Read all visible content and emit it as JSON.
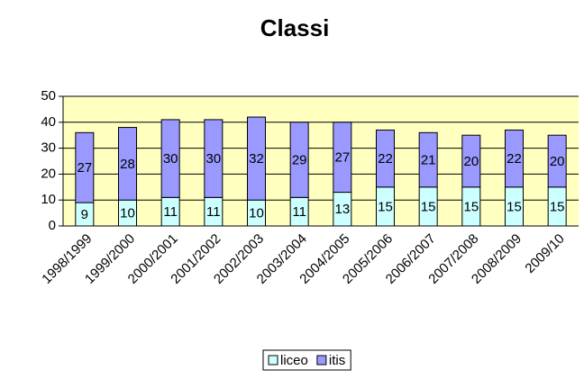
{
  "chart_data": {
    "type": "stacked_bar",
    "title": "Classi",
    "categories": [
      "1998/1999",
      "1999/2000",
      "2000/2001",
      "2001/2002",
      "2002/2003",
      "2003/2004",
      "2004/2005",
      "2005/2006",
      "2006/2007",
      "2007/2008",
      "2008/2009",
      "2009/10"
    ],
    "series": [
      {
        "name": "liceo",
        "color": "#ccffff",
        "values": [
          9,
          10,
          11,
          11,
          10,
          11,
          13,
          15,
          15,
          15,
          15,
          15
        ]
      },
      {
        "name": "itis",
        "color": "#9999ff",
        "values": [
          27,
          28,
          30,
          30,
          32,
          29,
          27,
          22,
          21,
          20,
          22,
          20
        ]
      }
    ],
    "ylim": [
      0,
      50
    ],
    "yticks": [
      0,
      10,
      20,
      30,
      40,
      50
    ],
    "grid": true,
    "legend": "bottom"
  }
}
